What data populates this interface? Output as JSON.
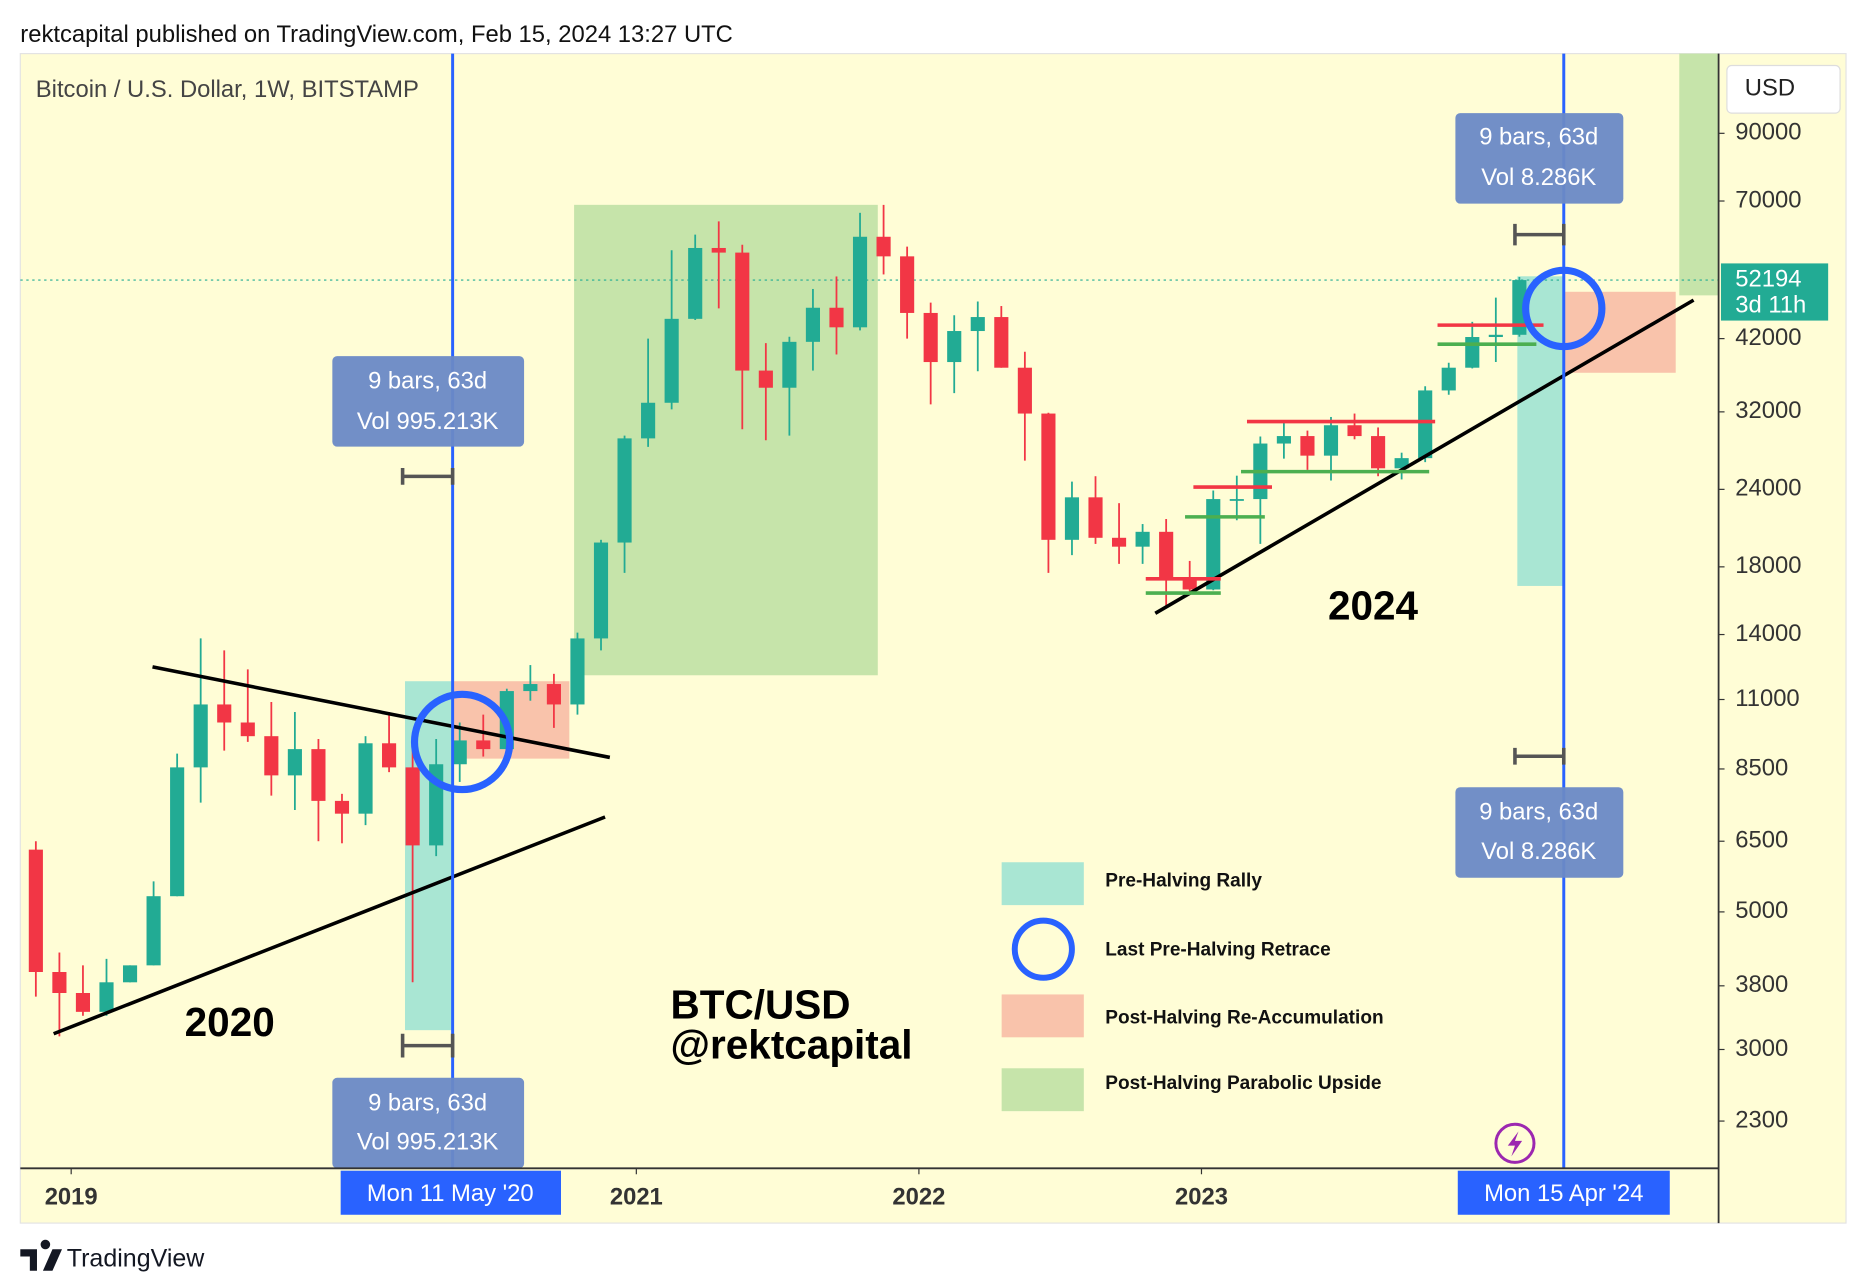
{
  "chart_data": {
    "type": "candlestick",
    "header": "rektcapital published on TradingView.com, Feb 15, 2024 13:27 UTC",
    "title": "Bitcoin / U.S. Dollar, 1W, BITSTAMP",
    "currency": "USD",
    "countdown": "3d 11h",
    "footer": "TradingView",
    "log_scale": true,
    "up_color": "#22ab94",
    "down_color": "#f23645",
    "ylim": [
      1930,
      121000
    ],
    "yticks": [
      90000,
      70000,
      42000,
      32000,
      24000,
      18000,
      14000,
      11000,
      8500,
      6500,
      5000,
      3800,
      3000,
      2300
    ],
    "xlim": [
      2018.82,
      2024.83
    ],
    "xticks": [
      2019,
      2021,
      2022,
      2023
    ],
    "crosshair_labels": [
      "Mon 11 May '20",
      "Mon 15 Apr '24"
    ],
    "measures": [
      {
        "bars": "9 bars, 63d",
        "vol": "Vol 995.213K"
      },
      {
        "bars": "9 bars, 63d",
        "vol": "Vol 995.213K"
      },
      {
        "bars": "9 bars, 63d",
        "vol": "Vol 8.286K"
      },
      {
        "bars": "9 bars, 63d",
        "vol": "Vol 8.286K"
      }
    ],
    "annotations": [
      "2020",
      "2024",
      "BTC/USD",
      "@rektcapital"
    ],
    "legend": [
      "Pre-Halving Rally",
      "Last Pre-Halving Retrace",
      "Post-Halving Re-Accumulation",
      "Post-Halving Parabolic Upside"
    ],
    "x": [
      "2018-11",
      "2018-12",
      "2019-01",
      "2019-02",
      "2019-03",
      "2019-04",
      "2019-05",
      "2019-06",
      "2019-07",
      "2019-08",
      "2019-09",
      "2019-10",
      "2019-11",
      "2019-12",
      "2020-01",
      "2020-02",
      "2020-03",
      "2020-04",
      "2020-05",
      "2020-06",
      "2020-07",
      "2020-08",
      "2020-09",
      "2020-10",
      "2020-11",
      "2020-12",
      "2021-01",
      "2021-02",
      "2021-03",
      "2021-04",
      "2021-05",
      "2021-06",
      "2021-07",
      "2021-08",
      "2021-09",
      "2021-10",
      "2021-11",
      "2021-12",
      "2022-01",
      "2022-02",
      "2022-03",
      "2022-04",
      "2022-05",
      "2022-06",
      "2022-07",
      "2022-08",
      "2022-09",
      "2022-10",
      "2022-11",
      "2022-12",
      "2023-01",
      "2023-02",
      "2023-03",
      "2023-04",
      "2023-05",
      "2023-06",
      "2023-07",
      "2023-08",
      "2023-09",
      "2023-10",
      "2023-11",
      "2023-12",
      "2024-01",
      "2024-02"
    ],
    "open": [
      6300,
      4000,
      3700,
      3450,
      3850,
      4100,
      5300,
      8550,
      10800,
      10100,
      9600,
      8300,
      9150,
      7550,
      7200,
      9350,
      8550,
      6400,
      8650,
      9450,
      9150,
      11350,
      11650,
      10800,
      13800,
      19700,
      29000,
      33100,
      45200,
      58800,
      57800,
      37300,
      35000,
      41500,
      47100,
      43800,
      61300,
      57000,
      46200,
      38500,
      43200,
      45500,
      37700,
      31800,
      19900,
      23300,
      20050,
      19400,
      20500,
      17150,
      16550,
      23150,
      23150,
      28450,
      29250,
      27200,
      30450,
      29250,
      25950,
      26950,
      34650,
      37700,
      42250,
      42600
    ],
    "high": [
      6500,
      4300,
      4100,
      4200,
      4100,
      5600,
      9000,
      13800,
      13200,
      12300,
      10900,
      10500,
      9500,
      7750,
      9600,
      10500,
      9200,
      9500,
      10100,
      10400,
      11450,
      12500,
      12100,
      14100,
      19900,
      29300,
      42000,
      58300,
      61800,
      64900,
      59500,
      41300,
      42300,
      50500,
      52900,
      67000,
      69000,
      59100,
      48000,
      45800,
      48200,
      47400,
      40000,
      31900,
      24700,
      25200,
      22800,
      21100,
      21500,
      18400,
      23900,
      25250,
      29200,
      31000,
      29850,
      31400,
      31800,
      30200,
      27500,
      35200,
      38400,
      44700,
      48900,
      52800
    ],
    "low": [
      3650,
      3150,
      3400,
      3400,
      3850,
      4100,
      5300,
      7500,
      9100,
      9400,
      7700,
      7300,
      6500,
      6450,
      6900,
      8400,
      3850,
      6150,
      8100,
      8900,
      9050,
      10950,
      9900,
      10400,
      13200,
      17600,
      28100,
      32300,
      45000,
      47000,
      30000,
      28800,
      29300,
      37300,
      39600,
      43300,
      53300,
      42000,
      32900,
      34300,
      37200,
      37700,
      26700,
      17600,
      18800,
      19600,
      18200,
      18200,
      15500,
      16300,
      16500,
      21400,
      19600,
      26900,
      25800,
      24800,
      28900,
      25200,
      24900,
      26550,
      34100,
      37600,
      38500,
      42300
    ],
    "close": [
      4000,
      3700,
      3450,
      3850,
      4100,
      5300,
      8550,
      10800,
      10100,
      9600,
      8300,
      9150,
      7550,
      7200,
      9350,
      8550,
      6400,
      8650,
      9450,
      9150,
      11350,
      11650,
      10800,
      13800,
      19700,
      29000,
      33100,
      45200,
      58800,
      57800,
      37300,
      35000,
      41500,
      47100,
      43800,
      61300,
      57000,
      46200,
      38500,
      43200,
      45500,
      37700,
      31800,
      19900,
      23300,
      20050,
      19400,
      20500,
      17150,
      16550,
      23150,
      23150,
      28450,
      29250,
      27200,
      30450,
      29250,
      25950,
      26950,
      34650,
      37700,
      42250,
      42600,
      52194
    ]
  }
}
